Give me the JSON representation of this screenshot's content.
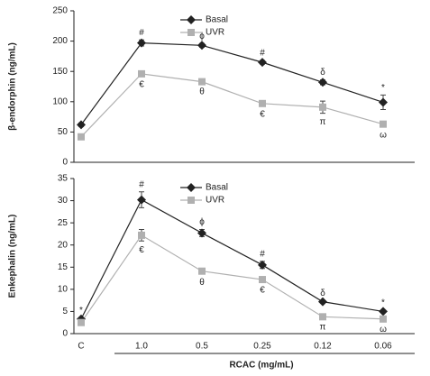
{
  "chart_data": [
    {
      "type": "line",
      "y_label": "β-endorphin (ng/mL)",
      "ylim": [
        0,
        250
      ],
      "yticks": [
        0,
        50,
        100,
        150,
        200,
        250
      ],
      "legend": "upper center",
      "series": [
        {
          "name": "Basal",
          "color": "#222222",
          "marker": "diamond",
          "values": [
            62,
            197,
            193,
            165,
            132,
            99
          ],
          "errors": [
            3,
            5,
            3,
            3,
            4,
            12
          ],
          "annotations": [
            "",
            "#",
            "ϕ",
            "#",
            "δ",
            "*"
          ]
        },
        {
          "name": "UVR",
          "color": "#b0b0b0",
          "marker": "square",
          "values": [
            42,
            146,
            133,
            97,
            91,
            63
          ],
          "errors": [
            2,
            3,
            2,
            3,
            10,
            3
          ],
          "annotations": [
            null,
            "€",
            "θ",
            "€",
            "π",
            "ω"
          ]
        }
      ]
    },
    {
      "type": "line",
      "y_label": "Enkephalin (ng/mL)",
      "x_label": "RCAC (mg/mL)",
      "categories": [
        "C",
        "1.0",
        "0.5",
        "0.25",
        "0.12",
        "0.06"
      ],
      "ylim": [
        0,
        35
      ],
      "yticks": [
        0,
        5,
        10,
        15,
        20,
        25,
        30,
        35
      ],
      "legend": "upper center",
      "series": [
        {
          "name": "Basal",
          "color": "#222222",
          "marker": "diamond",
          "values": [
            3.3,
            30.2,
            22.7,
            15.5,
            7.2,
            5.0
          ],
          "errors": [
            0.3,
            1.8,
            0.8,
            0.8,
            0.3,
            0.3
          ],
          "annotations": [
            "*",
            "#",
            "ϕ",
            "#",
            "δ",
            "*"
          ]
        },
        {
          "name": "UVR",
          "color": "#b0b0b0",
          "marker": "square",
          "values": [
            2.5,
            22.2,
            14.1,
            12.2,
            3.8,
            3.3
          ],
          "errors": [
            0.3,
            1.3,
            0.5,
            0.4,
            0.3,
            0.3
          ],
          "annotations": [
            null,
            "€",
            "θ",
            "€",
            "π",
            "ω"
          ]
        }
      ]
    }
  ]
}
